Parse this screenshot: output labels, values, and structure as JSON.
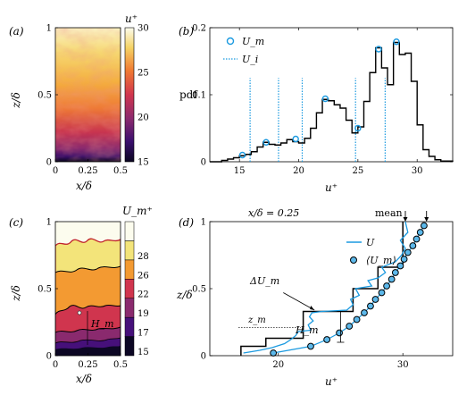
{
  "panels": {
    "a": {
      "label": "(a)",
      "xlabel": "x/δ",
      "ylabel": "z/δ",
      "xticks": [
        {
          "v": 0,
          "t": "0"
        },
        {
          "v": 0.25,
          "t": "0.25"
        },
        {
          "v": 0.5,
          "t": "0.5"
        }
      ],
      "yticks": [
        {
          "v": 0,
          "t": "0"
        },
        {
          "v": 0.5,
          "t": "0.5"
        },
        {
          "v": 1,
          "t": "1"
        }
      ],
      "colorbar": {
        "label": "u⁺",
        "range": [
          15,
          30
        ],
        "ticks": [
          "15",
          "20",
          "25",
          "30"
        ],
        "colormap": "inferno"
      }
    },
    "c": {
      "label": "(c)",
      "xlabel": "x/δ",
      "ylabel": "z/δ",
      "annotation": "H_m",
      "xticks": [
        {
          "v": 0,
          "t": "0"
        },
        {
          "v": 0.25,
          "t": "0.25"
        },
        {
          "v": 0.5,
          "t": "0.5"
        }
      ],
      "yticks": [
        {
          "v": 0,
          "t": "0"
        },
        {
          "v": 0.5,
          "t": "0.5"
        },
        {
          "v": 1,
          "t": "1"
        }
      ],
      "colorbar": {
        "label": "U_m⁺",
        "levels": [
          {
            "t": "15",
            "color": "#0c0724"
          },
          {
            "t": "17",
            "color": "#46107a"
          },
          {
            "t": "19",
            "color": "#8a2a6e"
          },
          {
            "t": "22",
            "color": "#d0354e"
          },
          {
            "t": "26",
            "color": "#f39a32"
          },
          {
            "t": "28",
            "color": "#f3e47a"
          },
          {
            "t": "",
            "color": "#fcfcee"
          }
        ]
      }
    }
  },
  "chart_data": [
    {
      "id": "b",
      "type": "line",
      "panel_label": "(b)",
      "xlabel": "u⁺",
      "ylabel": "pdf",
      "xlim": [
        12.5,
        33
      ],
      "ylim": [
        0,
        0.2
      ],
      "xticks": [
        15,
        20,
        25,
        30
      ],
      "yticks": [
        {
          "v": 0,
          "t": "0"
        },
        {
          "v": 0.1,
          "t": "0.1"
        },
        {
          "v": 0.2,
          "t": "0.2"
        }
      ],
      "legend": [
        {
          "name": "U_m",
          "style": "circle"
        },
        {
          "name": "U_i",
          "style": "dotted"
        }
      ],
      "histogram": [
        [
          12.5,
          0.0
        ],
        [
          13.5,
          0.002
        ],
        [
          14.0,
          0.004
        ],
        [
          14.5,
          0.006
        ],
        [
          15.0,
          0.009
        ],
        [
          15.5,
          0.011
        ],
        [
          16.0,
          0.015
        ],
        [
          16.5,
          0.022
        ],
        [
          17.0,
          0.029
        ],
        [
          17.5,
          0.026
        ],
        [
          18.0,
          0.025
        ],
        [
          18.5,
          0.028
        ],
        [
          19.0,
          0.033
        ],
        [
          19.5,
          0.03
        ],
        [
          20.0,
          0.028
        ],
        [
          20.5,
          0.035
        ],
        [
          21.0,
          0.05
        ],
        [
          21.5,
          0.073
        ],
        [
          22.0,
          0.093
        ],
        [
          22.5,
          0.091
        ],
        [
          23.0,
          0.085
        ],
        [
          23.5,
          0.08
        ],
        [
          24.0,
          0.062
        ],
        [
          24.5,
          0.043
        ],
        [
          25.0,
          0.052
        ],
        [
          25.5,
          0.09
        ],
        [
          26.0,
          0.133
        ],
        [
          26.5,
          0.17
        ],
        [
          27.0,
          0.14
        ],
        [
          27.5,
          0.115
        ],
        [
          28.0,
          0.178
        ],
        [
          28.5,
          0.16
        ],
        [
          29.0,
          0.162
        ],
        [
          29.5,
          0.12
        ],
        [
          30.0,
          0.055
        ],
        [
          30.5,
          0.018
        ],
        [
          31.0,
          0.008
        ],
        [
          31.5,
          0.003
        ],
        [
          32.0,
          0.001
        ],
        [
          33.0,
          0.0
        ]
      ],
      "modal_points": [
        {
          "x": 15.25,
          "y": 0.01
        },
        {
          "x": 17.25,
          "y": 0.029
        },
        {
          "x": 19.75,
          "y": 0.034
        },
        {
          "x": 22.25,
          "y": 0.094
        },
        {
          "x": 25.0,
          "y": 0.05
        },
        {
          "x": 26.75,
          "y": 0.168
        },
        {
          "x": 28.25,
          "y": 0.179
        }
      ],
      "interfaces": [
        15.9,
        18.3,
        20.3,
        24.8,
        27.3
      ]
    },
    {
      "id": "d",
      "type": "line",
      "panel_label": "(d)",
      "xlabel": "u⁺",
      "ylabel": "z/δ",
      "xlim": [
        14.5,
        34
      ],
      "ylim": [
        0,
        1
      ],
      "xticks": [
        20,
        30
      ],
      "yticks": [
        {
          "v": 0,
          "t": "0"
        },
        {
          "v": 0.5,
          "t": "0.5"
        },
        {
          "v": 1,
          "t": "1"
        }
      ],
      "legend": [
        {
          "name": "U",
          "style": "line"
        },
        {
          "name": "⟨U_m⟩",
          "style": "circle"
        }
      ],
      "annotations": {
        "top_left": "x/δ = 0.25",
        "top_right": "mean",
        "delta": "ΔU_m",
        "height": "H_m",
        "zm": "z_m"
      },
      "U_profile": [
        [
          17.2,
          0.02
        ],
        [
          18.5,
          0.04
        ],
        [
          19.5,
          0.06
        ],
        [
          20.5,
          0.09
        ],
        [
          21.0,
          0.12
        ],
        [
          21.4,
          0.15
        ],
        [
          21.6,
          0.18
        ],
        [
          22.6,
          0.19
        ],
        [
          22.4,
          0.23
        ],
        [
          22.8,
          0.26
        ],
        [
          22.5,
          0.29
        ],
        [
          22.7,
          0.32
        ],
        [
          23.5,
          0.33
        ],
        [
          25.5,
          0.34
        ],
        [
          26.0,
          0.38
        ],
        [
          25.8,
          0.42
        ],
        [
          26.5,
          0.45
        ],
        [
          26.2,
          0.5
        ],
        [
          27.5,
          0.52
        ],
        [
          27.2,
          0.56
        ],
        [
          28.0,
          0.58
        ],
        [
          28.6,
          0.62
        ],
        [
          28.3,
          0.66
        ],
        [
          29.4,
          0.7
        ],
        [
          29.9,
          0.75
        ],
        [
          30.2,
          0.8
        ],
        [
          29.8,
          0.86
        ],
        [
          30.4,
          0.92
        ],
        [
          30.2,
          1.0
        ]
      ],
      "Um_staircase": [
        [
          17.0,
          0.0
        ],
        [
          17.0,
          0.07
        ],
        [
          19.0,
          0.07
        ],
        [
          19.0,
          0.13
        ],
        [
          22.0,
          0.13
        ],
        [
          22.0,
          0.33
        ],
        [
          26.0,
          0.33
        ],
        [
          26.0,
          0.5
        ],
        [
          28.0,
          0.5
        ],
        [
          28.0,
          0.66
        ],
        [
          30.0,
          0.66
        ],
        [
          30.0,
          1.0
        ]
      ],
      "mean_Um": [
        [
          19.6,
          0.02
        ],
        [
          22.6,
          0.07
        ],
        [
          23.9,
          0.12
        ],
        [
          24.9,
          0.17
        ],
        [
          25.7,
          0.22
        ],
        [
          26.3,
          0.27
        ],
        [
          26.9,
          0.32
        ],
        [
          27.4,
          0.37
        ],
        [
          27.8,
          0.42
        ],
        [
          28.3,
          0.47
        ],
        [
          28.7,
          0.52
        ],
        [
          29.1,
          0.57
        ],
        [
          29.4,
          0.62
        ],
        [
          29.8,
          0.67
        ],
        [
          30.1,
          0.72
        ],
        [
          30.4,
          0.77
        ],
        [
          30.8,
          0.82
        ],
        [
          31.1,
          0.87
        ],
        [
          31.4,
          0.92
        ],
        [
          31.7,
          0.97
        ]
      ]
    }
  ]
}
